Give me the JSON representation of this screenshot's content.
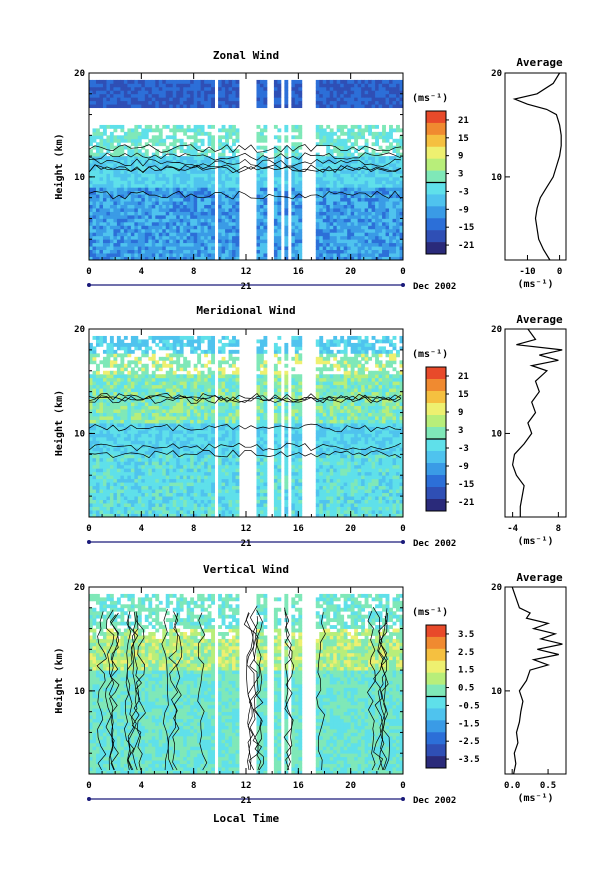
{
  "figure": {
    "x_ticks": [
      "0",
      "4",
      "8",
      "12",
      "16",
      "20",
      "0"
    ],
    "date_day": "21",
    "date_label": "Dec 2002",
    "xlabel": "Local Time",
    "ylabel": "Height (km)",
    "y_ticks": [
      "10",
      "20"
    ],
    "unit_label": "(ms⁻¹)",
    "avg_title": "Average",
    "palette": [
      "#2a2a7a",
      "#2f4fb5",
      "#2c6fd8",
      "#3a9be6",
      "#4fc3ee",
      "#5fe0ea",
      "#7fe8b8",
      "#b8ee7a",
      "#eef070",
      "#f5c040",
      "#f08a30",
      "#e84a2a"
    ]
  },
  "chart_data": [
    {
      "type": "heatmap",
      "title": "Zonal Wind",
      "xlabel": "Local Time",
      "ylabel": "Height (km)",
      "x_range": [
        0,
        24
      ],
      "ylim": [
        2,
        20
      ],
      "colorbar_unit": "(ms⁻¹)",
      "colorbar_ticks": [
        "21",
        "15",
        "9",
        "3",
        "-3",
        "-9",
        "-15",
        "-21"
      ],
      "colorbar_range": [
        -24,
        24
      ],
      "data_gaps_hours": [
        [
          9.6,
          9.9
        ],
        [
          11.6,
          12.8
        ],
        [
          13.7,
          14.0
        ],
        [
          14.7,
          15.0
        ],
        [
          15.3,
          15.5
        ],
        [
          16.4,
          17.3
        ]
      ],
      "average_profile": {
        "title": "Average",
        "xlabel": "(ms⁻¹)",
        "x_ticks": [
          "-10",
          "0"
        ],
        "xlim": [
          -17,
          2
        ],
        "y_ticks": [
          "10",
          "20"
        ],
        "height_km": [
          2,
          3,
          4,
          5,
          6,
          7,
          8,
          9,
          10,
          11,
          12,
          13,
          14,
          15,
          16,
          16.5,
          17,
          17.5,
          18,
          19,
          20
        ],
        "value": [
          -3,
          -5,
          -6.5,
          -7,
          -7.5,
          -7,
          -6,
          -4,
          -2,
          -1,
          0,
          0.5,
          0.5,
          0,
          -1,
          -4,
          -10,
          -14,
          -7,
          -2,
          0
        ]
      }
    },
    {
      "type": "heatmap",
      "title": "Meridional Wind",
      "xlabel": "Local Time",
      "ylabel": "Height (km)",
      "x_range": [
        0,
        24
      ],
      "ylim": [
        2,
        20
      ],
      "colorbar_unit": "(ms⁻¹)",
      "colorbar_ticks": [
        "21",
        "15",
        "9",
        "3",
        "-3",
        "-9",
        "-15",
        "-21"
      ],
      "colorbar_range": [
        -24,
        24
      ],
      "data_gaps_hours": [
        [
          9.6,
          9.9
        ],
        [
          11.6,
          12.8
        ],
        [
          13.7,
          14.0
        ],
        [
          14.7,
          15.0
        ],
        [
          15.3,
          15.5
        ],
        [
          16.4,
          17.3
        ]
      ],
      "average_profile": {
        "title": "Average",
        "xlabel": "(ms⁻¹)",
        "x_ticks": [
          "-4",
          "8"
        ],
        "xlim": [
          -6,
          10
        ],
        "y_ticks": [
          "10",
          "20"
        ],
        "height_km": [
          2,
          3,
          4,
          5,
          6,
          7,
          8,
          9,
          10,
          11,
          12,
          13,
          14,
          15,
          16,
          16.5,
          17,
          17.5,
          18,
          18.5,
          19,
          20
        ],
        "value": [
          -2,
          -2,
          -1.5,
          -1,
          -3,
          -4,
          -3.5,
          -1,
          1,
          0,
          2,
          1,
          3,
          2,
          5,
          1,
          8,
          3,
          9,
          -3,
          2,
          0
        ]
      }
    },
    {
      "type": "heatmap",
      "title": "Vertical Wind",
      "xlabel": "Local Time",
      "ylabel": "Height (km)",
      "x_range": [
        0,
        24
      ],
      "ylim": [
        2,
        20
      ],
      "colorbar_unit": "(ms⁻¹)",
      "colorbar_ticks": [
        "3.5",
        "2.5",
        "1.5",
        "0.5",
        "-0.5",
        "-1.5",
        "-2.5",
        "-3.5"
      ],
      "colorbar_range": [
        -4,
        4
      ],
      "data_gaps_hours": [
        [
          9.6,
          9.9
        ],
        [
          11.6,
          12.8
        ],
        [
          13.7,
          14.0
        ],
        [
          14.7,
          15.0
        ],
        [
          15.3,
          15.5
        ],
        [
          16.4,
          17.3
        ]
      ],
      "average_profile": {
        "title": "Average",
        "xlabel": "(ms⁻¹)",
        "x_ticks": [
          "0.0",
          "0.5"
        ],
        "xlim": [
          -0.1,
          0.75
        ],
        "y_ticks": [
          "10",
          "20"
        ],
        "height_km": [
          2,
          3,
          4,
          5,
          6,
          7,
          8,
          9,
          10,
          11,
          12,
          12.5,
          13,
          13.5,
          14,
          14.5,
          15,
          15.5,
          16,
          16.5,
          17,
          17.5,
          18,
          19,
          20
        ],
        "value": [
          0.02,
          0.05,
          0.03,
          0.08,
          0.06,
          0.1,
          0.12,
          0.15,
          0.1,
          0.2,
          0.25,
          0.5,
          0.3,
          0.65,
          0.35,
          0.7,
          0.4,
          0.6,
          0.3,
          0.5,
          0.2,
          0.25,
          0.1,
          0.05,
          0.0
        ]
      }
    }
  ]
}
